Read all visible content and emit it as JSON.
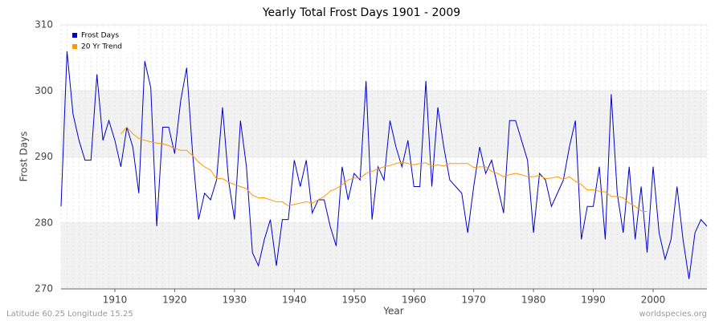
{
  "chart_data": {
    "type": "line",
    "title": "Yearly Total Frost Days 1901 - 2009",
    "xlabel": "Year",
    "ylabel": "Frost Days",
    "footer_left": "Latitude 60.25 Longitude 15.25",
    "footer_right": "worldspecies.org",
    "x": [
      1901,
      1902,
      1903,
      1904,
      1905,
      1906,
      1907,
      1908,
      1909,
      1910,
      1911,
      1912,
      1913,
      1914,
      1915,
      1916,
      1917,
      1918,
      1919,
      1920,
      1921,
      1922,
      1923,
      1924,
      1925,
      1926,
      1927,
      1928,
      1929,
      1930,
      1931,
      1932,
      1933,
      1934,
      1935,
      1936,
      1937,
      1938,
      1939,
      1940,
      1941,
      1942,
      1943,
      1944,
      1945,
      1946,
      1947,
      1948,
      1949,
      1950,
      1951,
      1952,
      1953,
      1954,
      1955,
      1956,
      1957,
      1958,
      1959,
      1960,
      1961,
      1962,
      1963,
      1964,
      1965,
      1966,
      1967,
      1968,
      1969,
      1970,
      1971,
      1972,
      1973,
      1974,
      1975,
      1976,
      1977,
      1978,
      1979,
      1980,
      1981,
      1982,
      1983,
      1984,
      1985,
      1986,
      1987,
      1988,
      1989,
      1990,
      1991,
      1992,
      1993,
      1994,
      1995,
      1996,
      1997,
      1998,
      1999,
      2000,
      2001,
      2002,
      2003,
      2004,
      2005,
      2006,
      2007,
      2008,
      2009
    ],
    "series": [
      {
        "name": "Frost Days",
        "color": "#0000cc",
        "values": [
          282.5,
          306,
          296.5,
          292.5,
          289.5,
          289.5,
          302.5,
          292.5,
          295.5,
          292.5,
          288.5,
          294.5,
          291.5,
          284.5,
          304.5,
          300.5,
          279.5,
          294.5,
          294.5,
          290.5,
          298.5,
          303.5,
          290.5,
          280.5,
          284.5,
          283.5,
          286.5,
          297.5,
          286.5,
          280.5,
          295.5,
          288.5,
          275.5,
          273.5,
          277.5,
          280.5,
          273.5,
          280.5,
          280.5,
          289.5,
          285.5,
          289.5,
          281.5,
          283.5,
          283.5,
          279.5,
          276.5,
          288.5,
          283.5,
          287.5,
          286.5,
          301.5,
          280.5,
          288.5,
          286.5,
          295.5,
          291.5,
          288.5,
          292.5,
          285.5,
          285.5,
          301.5,
          285.5,
          297.5,
          291.5,
          286.5,
          285.5,
          284.5,
          278.5,
          285.5,
          291.5,
          287.5,
          289.5,
          285.5,
          281.5,
          295.5,
          295.5,
          292.5,
          289.5,
          278.5,
          287.5,
          286.5,
          282.5,
          284.5,
          286.5,
          291.5,
          295.5,
          277.5,
          282.5,
          282.5,
          288.5,
          277.5,
          299.5,
          284.5,
          278.5,
          288.5,
          277.5,
          285.5,
          275.5,
          288.5,
          278.5,
          274.5,
          277.5,
          285.5,
          277.5,
          271.5,
          278.5,
          280.5,
          279.5
        ]
      },
      {
        "name": "20 Yr Trend",
        "color": "#ff9900",
        "values": [
          null,
          null,
          null,
          null,
          null,
          null,
          null,
          null,
          null,
          null,
          293.5,
          294.5,
          293.5,
          292.8,
          292.5,
          292.3,
          292.1,
          292,
          291.7,
          291.3,
          291,
          291,
          290.2,
          289.2,
          288.5,
          288,
          286.7,
          286.7,
          286.2,
          285.8,
          285.5,
          285.2,
          284.2,
          283.8,
          283.8,
          283.5,
          283.2,
          283.2,
          282.6,
          282.8,
          283,
          283.2,
          283,
          283.5,
          284,
          284.8,
          285.2,
          285.8,
          286.5,
          286.8,
          286.8,
          287.5,
          287.8,
          288.2,
          288.5,
          288.7,
          289,
          289.2,
          289,
          288.8,
          289,
          289.1,
          288.6,
          288.8,
          288.6,
          289,
          289,
          289,
          289,
          288.4,
          288.5,
          288.5,
          287.8,
          287.5,
          287,
          287.3,
          287.5,
          287.3,
          287,
          287,
          287.2,
          286.7,
          286.8,
          287,
          286.6,
          287,
          286.3,
          285.8,
          285,
          285,
          284.8,
          284.7,
          284,
          284,
          283.8,
          283,
          282.5,
          281.8,
          281.7,
          null,
          null,
          null,
          null,
          null,
          null,
          null,
          null,
          null,
          null
        ]
      }
    ],
    "xlim": [
      1901,
      2009
    ],
    "xticks": [
      1910,
      1920,
      1930,
      1940,
      1950,
      1960,
      1970,
      1980,
      1990,
      2000
    ],
    "ylim": [
      270,
      310
    ],
    "yticks": [
      270,
      280,
      290,
      300,
      310
    ],
    "grid": true,
    "legend": "upper left"
  }
}
